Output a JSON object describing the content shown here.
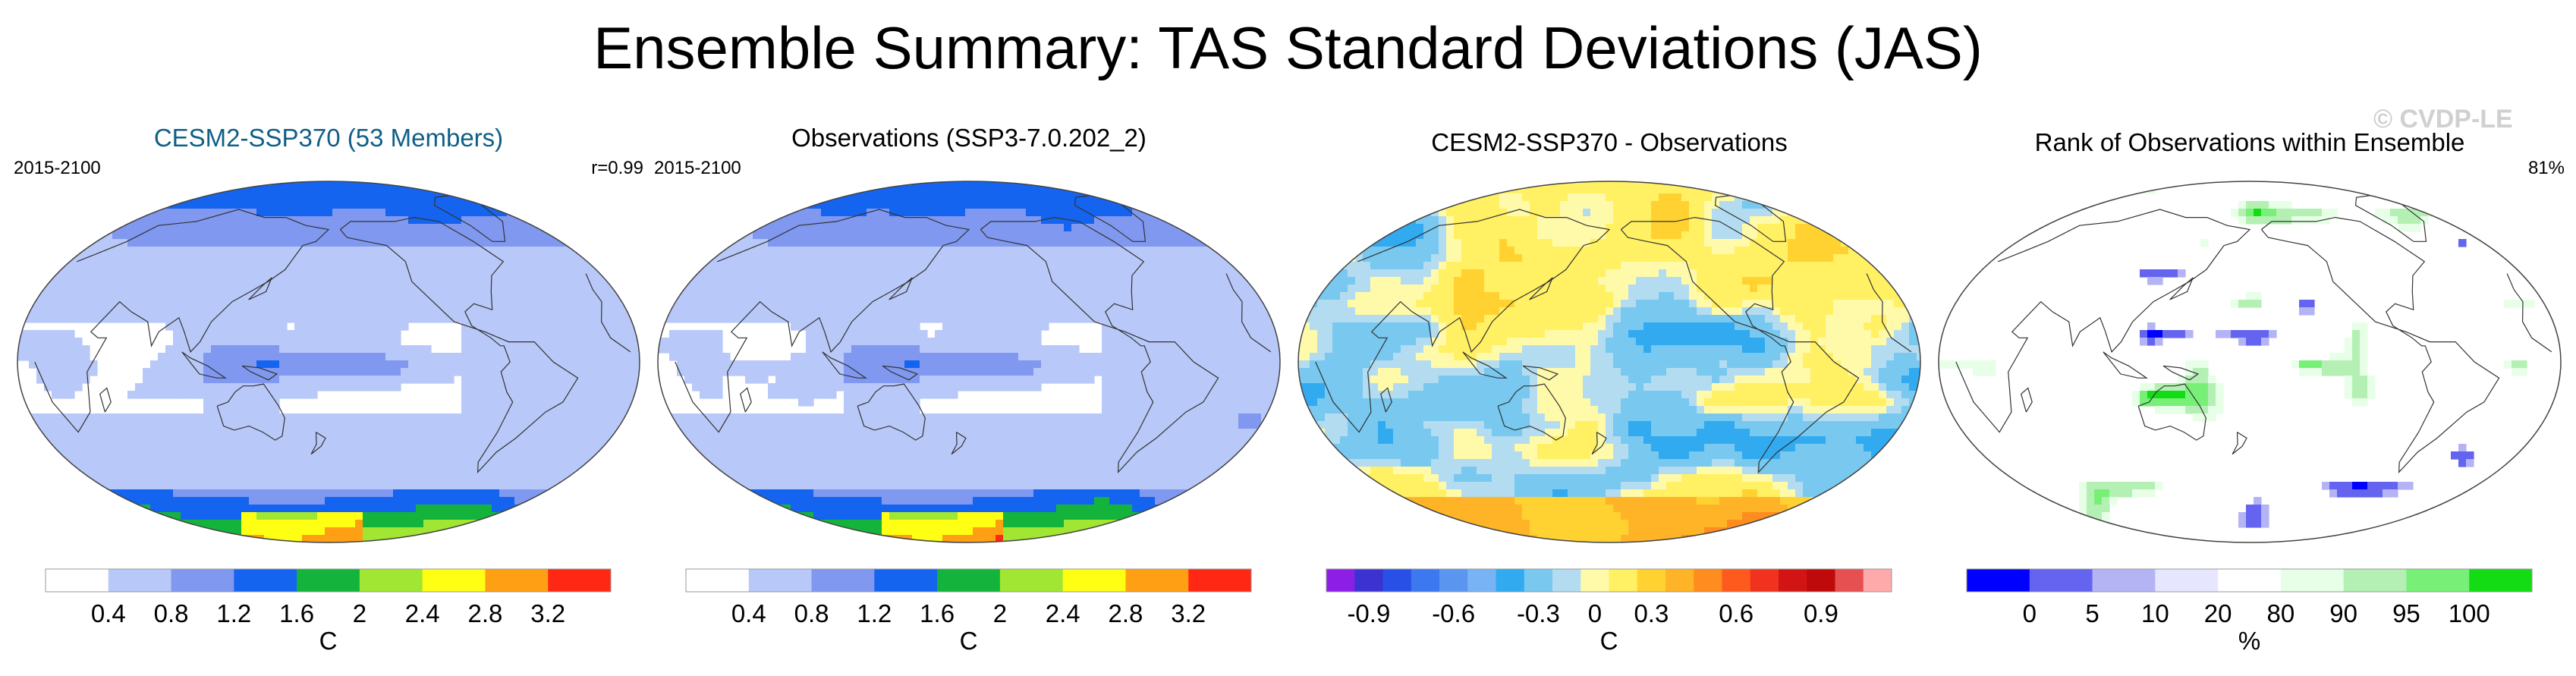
{
  "figure": {
    "title": "Ensemble Summary: TAS Standard Deviations (JAS)",
    "watermark": "© CVDP-LE"
  },
  "panels": [
    {
      "id": "ensemble",
      "title": "CESM2-SSP370 (53 Members)",
      "title_color": "#0f5f86",
      "left_label": "2015-2100",
      "right_label": "r=0.99",
      "fill": "sd1",
      "colorbar": {
        "colors": [
          "#ffffff",
          "#b8c8f8",
          "#8098f0",
          "#1464f0",
          "#14b43c",
          "#a0e632",
          "#ffff14",
          "#ffa014",
          "#ff2814"
        ],
        "tick_labels": [
          "0.4",
          "0.8",
          "1.2",
          "1.6",
          "2",
          "2.4",
          "2.8",
          "3.2"
        ],
        "unit": "C"
      }
    },
    {
      "id": "observations",
      "title": "Observations (SSP3-7.0.202_2)",
      "title_color": "#000000",
      "left_label": "2015-2100",
      "right_label": "",
      "fill": "sd2",
      "colorbar": {
        "colors": [
          "#ffffff",
          "#b8c8f8",
          "#8098f0",
          "#1464f0",
          "#14b43c",
          "#a0e632",
          "#ffff14",
          "#ffa014",
          "#ff2814"
        ],
        "tick_labels": [
          "0.4",
          "0.8",
          "1.2",
          "1.6",
          "2",
          "2.4",
          "2.8",
          "3.2"
        ],
        "unit": "C"
      }
    },
    {
      "id": "difference",
      "title": "CESM2-SSP370 - Observations",
      "title_color": "#000000",
      "left_label": "",
      "right_label": "",
      "fill": "diff",
      "colorbar": {
        "colors": [
          "#8c1ee6",
          "#3c32d2",
          "#2850e6",
          "#3c78f0",
          "#5a96f0",
          "#78b4f5",
          "#32aaf0",
          "#78c8f0",
          "#b4dcf0",
          "#fffaaa",
          "#fff064",
          "#ffd232",
          "#ffb428",
          "#ff8c1e",
          "#ff5a1e",
          "#f0321e",
          "#d21414",
          "#be0a0a",
          "#e65050",
          "#ffaaaa"
        ],
        "tick_labels": [
          "-0.9",
          "-0.6",
          "-0.3",
          "0",
          "0.3",
          "0.6",
          "0.9"
        ],
        "unit": "C"
      }
    },
    {
      "id": "rank",
      "title": "Rank of Observations within Ensemble",
      "title_color": "#000000",
      "left_label": "",
      "right_label": "81%",
      "fill": "rank",
      "colorbar": {
        "colors": [
          "#0000ff",
          "#6464f0",
          "#b4b4f5",
          "#e6e6ff",
          "#ffffff",
          "#e6ffe6",
          "#b4f0b4",
          "#78f078",
          "#14dc14"
        ],
        "tick_labels": [
          "0",
          "5",
          "10",
          "20",
          "80",
          "90",
          "95",
          "100"
        ],
        "unit": "%"
      }
    }
  ]
}
